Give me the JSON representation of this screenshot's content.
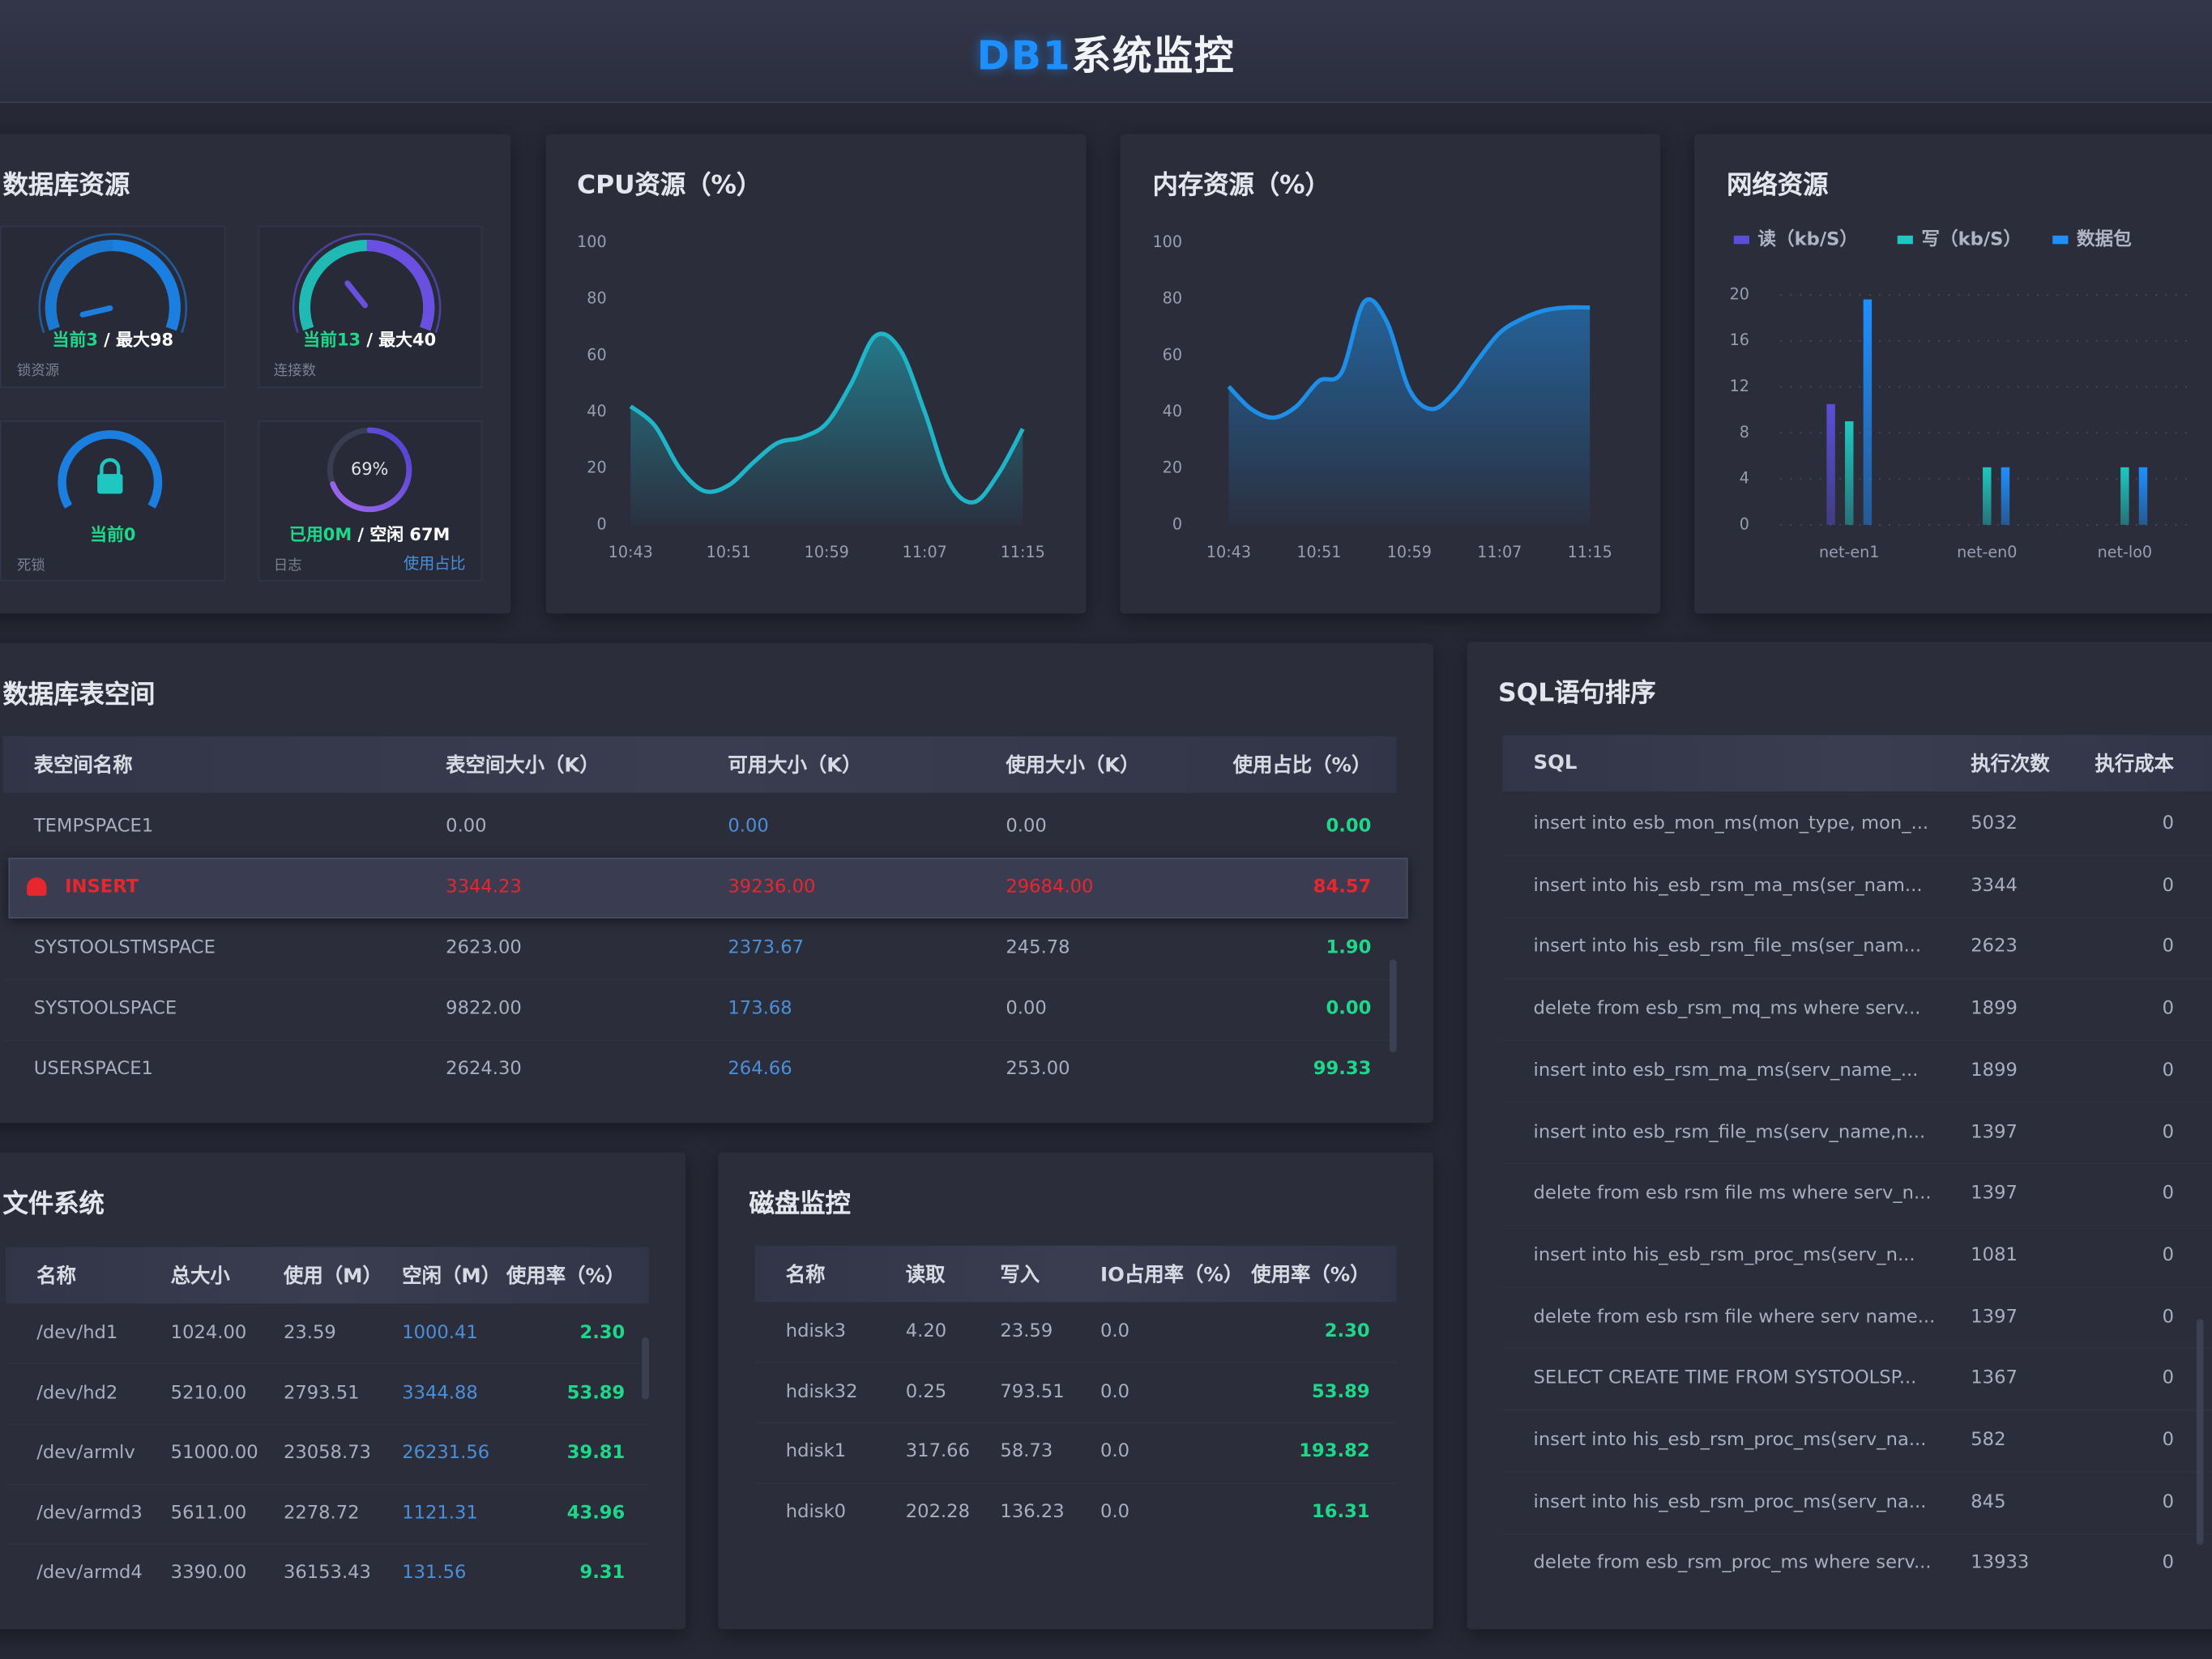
{
  "header": {
    "highlight": "DB1",
    "title": "系统监控"
  },
  "db_resources": {
    "title": "数据库资源",
    "gauges": [
      {
        "current": {
          "value": 3,
          "label": "当前3"
        },
        "separator": "/",
        "max": {
          "value": 98,
          "label": "最大98"
        },
        "caption": "锁资源",
        "color": "#1a7fe0"
      },
      {
        "current": {
          "value": 13,
          "label": "当前13"
        },
        "separator": "/",
        "max": {
          "value": 40,
          "label": "最大40"
        },
        "caption": "连接数",
        "color": "#6a4fe0"
      }
    ],
    "deadlock": {
      "current": "当前0",
      "caption": "死锁"
    },
    "log": {
      "ring": {
        "value": 69,
        "label": "69%"
      },
      "used": "已用0M",
      "separator": "/",
      "free": "空闲 67M",
      "caption": "日志",
      "link": "使用占比"
    }
  },
  "chart_data": [
    {
      "type": "line",
      "title": "CPU资源（%）",
      "categories": [
        "10:43",
        null,
        null,
        null,
        "10:51",
        null,
        null,
        null,
        "10:59",
        null,
        null,
        null,
        "11:07",
        null,
        null,
        null,
        "11:15"
      ],
      "series": [
        {
          "color": "#1fb5c9",
          "values": [
            42,
            35,
            20,
            12,
            14,
            22,
            29,
            31,
            36,
            50,
            67,
            62,
            40,
            15,
            8,
            18,
            34
          ]
        }
      ],
      "ylim": [
        0,
        100
      ],
      "yticks": [
        0,
        20,
        40,
        60,
        80,
        100
      ],
      "grid": false
    },
    {
      "type": "line",
      "title": "内存资源（%）",
      "categories": [
        "10:43",
        null,
        null,
        null,
        "10:51",
        null,
        null,
        null,
        "10:59",
        null,
        null,
        null,
        "11:07",
        null,
        null,
        null,
        "11:15"
      ],
      "series": [
        {
          "color": "#1e8fe8",
          "values": [
            49,
            41,
            38,
            42,
            51,
            54,
            79,
            72,
            48,
            41,
            47,
            58,
            68,
            73,
            76,
            77,
            77
          ]
        }
      ],
      "ylim": [
        0,
        100
      ],
      "yticks": [
        0,
        20,
        40,
        60,
        80,
        100
      ],
      "grid": false
    },
    {
      "type": "bar",
      "title": "网络资源",
      "categories": [
        "net-en1",
        "net-en0",
        "net-lo0"
      ],
      "series": [
        {
          "name": "读（kb/S）",
          "color": "#5b4fd8",
          "values": [
            10.5,
            0,
            0
          ]
        },
        {
          "name": "写（kb/S）",
          "color": "#1ec8c0",
          "values": [
            9,
            5,
            5
          ]
        },
        {
          "name": "数据包",
          "color": "#1e90ff",
          "values": [
            19.6,
            5,
            5
          ]
        }
      ],
      "ylim": [
        0,
        20
      ],
      "yticks": [
        0,
        4,
        8,
        12,
        16,
        20
      ],
      "grid": true,
      "legend": "top-left"
    }
  ],
  "tablespace": {
    "title": "数据库表空间",
    "alert_row": 1,
    "headers": [
      "表空间名称",
      "表空间大小（K）",
      "可用大小（K）",
      "使用大小（K）",
      "使用占比（%）"
    ],
    "rows": [
      [
        "TEMPSPACE1",
        "0.00",
        "0.00",
        "0.00",
        "0.00"
      ],
      [
        "INSERT",
        "3344.23",
        "39236.00",
        "29684.00",
        "84.57"
      ],
      [
        "SYSTOOLSTMSPACE",
        "2623.00",
        "2373.67",
        "245.78",
        "1.90"
      ],
      [
        "SYSTOOLSPACE",
        "9822.00",
        "173.68",
        "0.00",
        "0.00"
      ],
      [
        "USERSPACE1",
        "2624.30",
        "264.66",
        "253.00",
        "99.33"
      ]
    ]
  },
  "filesystem": {
    "title": "文件系统",
    "headers": [
      "名称",
      "总大小",
      "使用（M）",
      "空闲（M）",
      "使用率（%）"
    ],
    "rows": [
      [
        "/dev/hd1",
        "1024.00",
        "23.59",
        "1000.41",
        "2.30"
      ],
      [
        "/dev/hd2",
        "5210.00",
        "2793.51",
        "3344.88",
        "53.89"
      ],
      [
        "/dev/armlv",
        "51000.00",
        "23058.73",
        "26231.56",
        "39.81"
      ],
      [
        "/dev/armd3",
        "5611.00",
        "2278.72",
        "1121.31",
        "43.96"
      ],
      [
        "/dev/armd4",
        "3390.00",
        "36153.43",
        "131.56",
        "9.31"
      ]
    ]
  },
  "disk": {
    "title": "磁盘监控",
    "headers": [
      "名称",
      "读取",
      "写入",
      "IO占用率（%）",
      "使用率（%）"
    ],
    "rows": [
      [
        "hdisk3",
        "4.20",
        "23.59",
        "0.0",
        "2.30"
      ],
      [
        "hdisk32",
        "0.25",
        "793.51",
        "0.0",
        "53.89"
      ],
      [
        "hdisk1",
        "317.66",
        "58.73",
        "0.0",
        "193.82"
      ],
      [
        "hdisk0",
        "202.28",
        "136.23",
        "0.0",
        "16.31"
      ]
    ]
  },
  "sql": {
    "title": "SQL语句排序",
    "headers": [
      "SQL",
      "执行次数",
      "执行成本"
    ],
    "rows": [
      [
        "insert into esb_mon_ms(mon_type, mon_...",
        "5032",
        "0"
      ],
      [
        "insert into his_esb_rsm_ma_ms(ser_nam...",
        "3344",
        "0"
      ],
      [
        "insert into his_esb_rsm_file_ms(ser_nam...",
        "2623",
        "0"
      ],
      [
        "delete from esb_rsm_mq_ms where serv...",
        "1899",
        "0"
      ],
      [
        " insert into esb_rsm_ma_ms(serv_name_...",
        "1899",
        "0"
      ],
      [
        "insert into esb_rsm_file_ms(serv_name,n...",
        "1397",
        "0"
      ],
      [
        "delete from esb rsm file ms where serv_n...",
        "1397",
        "0"
      ],
      [
        "insert into his_esb_rsm_proc_ms(serv_n...",
        "1081",
        "0"
      ],
      [
        "delete from esb rsm file where serv name...",
        "1397",
        "0"
      ],
      [
        "SELECT CREATE TIME FROM SYSTOOLSP...",
        "1367",
        "0"
      ],
      [
        "insert into his_esb_rsm_proc_ms(serv_na...",
        "582",
        "0"
      ],
      [
        "insert into his_esb_rsm_proc_ms(serv_na...",
        "845",
        "0"
      ],
      [
        "delete from esb_rsm_proc_ms where serv...",
        "13933",
        "0"
      ]
    ]
  }
}
